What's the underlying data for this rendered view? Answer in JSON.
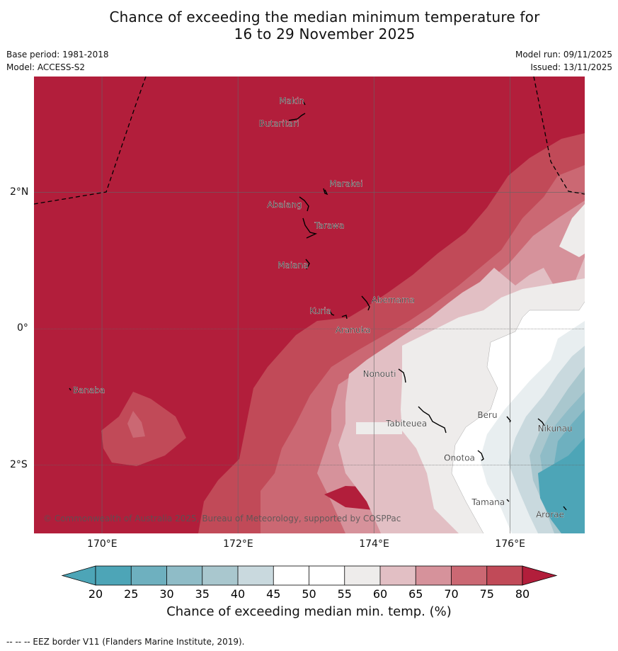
{
  "title_line1": "Chance of exceeding the median minimum temperature for",
  "title_line2": "16 to 29 November 2025",
  "base_period": "Base period: 1981-2018",
  "model": "Model: ACCESS-S2",
  "model_run": "Model run: 09/11/2025",
  "issued": "Issued: 13/11/2025",
  "copyright": "© Commonwealth of Australia 2025, Bureau of Meteorology, supported by COSPPac",
  "colorbar_title": "Chance of exceeding median min. temp. (%)",
  "footnote": "--  --  -- EEZ border V11 (Flanders Marine Institute, 2019).",
  "colors": {
    "c20": "#4da5b7",
    "c25": "#6eb0bf",
    "c30": "#8fbcc7",
    "c35": "#a9c7ce",
    "c40": "#c9d9de",
    "c45": "#e8eef0",
    "c50": "#ffffff",
    "c55": "#ffffff",
    "c60": "#eeeceb",
    "c65": "#e2bfc4",
    "c70": "#d6929b",
    "c75": "#cb6873",
    "c80": "#c14a58",
    "c80plus": "#b21e3b"
  },
  "map": {
    "lon_ticks": [
      {
        "lon": 170,
        "label": "170°E"
      },
      {
        "lon": 172,
        "label": "172°E"
      },
      {
        "lon": 174,
        "label": "174°E"
      },
      {
        "lon": 176,
        "label": "176°E"
      }
    ],
    "lat_ticks": [
      {
        "lat": 2,
        "label": "2°N"
      },
      {
        "lat": 0,
        "label": "0°"
      },
      {
        "lat": -2,
        "label": "2°S"
      }
    ],
    "islands": [
      {
        "name": "Makin",
        "lon": 172.98,
        "lat": 3.35
      },
      {
        "name": "Butaritari",
        "lon": 172.85,
        "lat": 3.07
      },
      {
        "name": "Marakei",
        "lon": 173.28,
        "lat": 2.02
      },
      {
        "name": "Abaiang",
        "lon": 172.95,
        "lat": 1.84
      },
      {
        "name": "Tarawa",
        "lon": 173.0,
        "lat": 1.45
      },
      {
        "name": "Maiana",
        "lon": 173.0,
        "lat": 0.93
      },
      {
        "name": "Abemama",
        "lon": 173.88,
        "lat": 0.4
      },
      {
        "name": "Kuria",
        "lon": 173.42,
        "lat": 0.24
      },
      {
        "name": "Aranuka",
        "lon": 173.62,
        "lat": 0.17
      },
      {
        "name": "Nonouti",
        "lon": 174.4,
        "lat": -0.65
      },
      {
        "name": "Tabiteuea",
        "lon": 174.8,
        "lat": -1.35
      },
      {
        "name": "Beru",
        "lon": 175.98,
        "lat": -1.33
      },
      {
        "name": "Nikunau",
        "lon": 176.45,
        "lat": -1.35
      },
      {
        "name": "Onotoa",
        "lon": 175.55,
        "lat": -1.83
      },
      {
        "name": "Tamana",
        "lon": 175.98,
        "lat": -2.5
      },
      {
        "name": "Arorae",
        "lon": 176.82,
        "lat": -2.64
      },
      {
        "name": "Banaba",
        "lon": 169.54,
        "lat": -0.88
      }
    ]
  },
  "colorbar_ticks": [
    "20",
    "25",
    "30",
    "35",
    "40",
    "45",
    "50",
    "55",
    "60",
    "65",
    "70",
    "75",
    "80"
  ]
}
